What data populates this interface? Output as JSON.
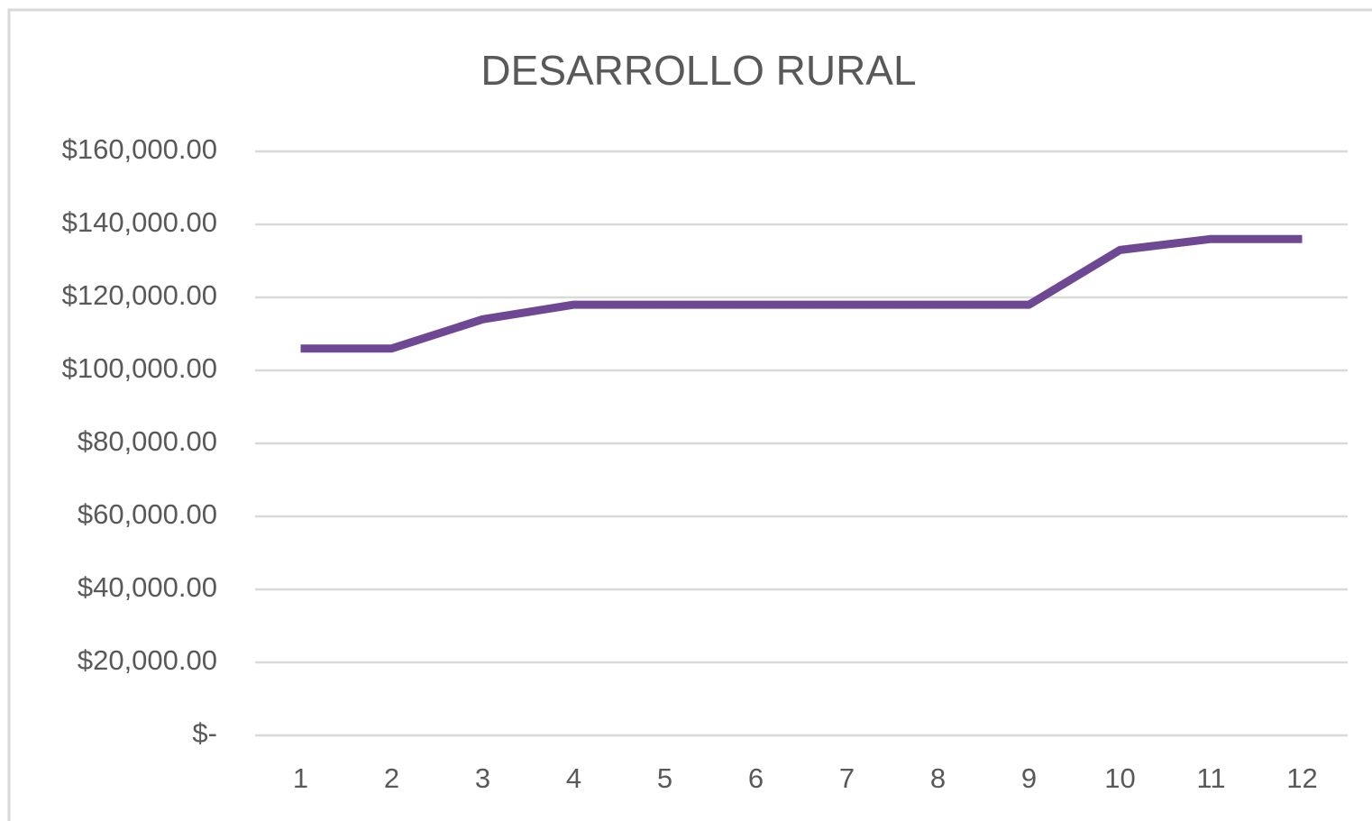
{
  "chart_data": {
    "type": "line",
    "title": "DESARROLLO RURAL",
    "categories": [
      1,
      2,
      3,
      4,
      5,
      6,
      7,
      8,
      9,
      10,
      11,
      12
    ],
    "series": [
      {
        "name": "DESARROLLO RURAL",
        "color": "#6e4893",
        "values": [
          106000,
          106000,
          114000,
          118000,
          118000,
          118000,
          118000,
          118000,
          118000,
          133000,
          136000,
          136000
        ]
      }
    ],
    "ylim": [
      0,
      160000
    ],
    "yticks": [
      {
        "value": 0,
        "label": "$-"
      },
      {
        "value": 20000,
        "label": "$20,000.00"
      },
      {
        "value": 40000,
        "label": "$40,000.00"
      },
      {
        "value": 60000,
        "label": "$60,000.00"
      },
      {
        "value": 80000,
        "label": "$80,000.00"
      },
      {
        "value": 100000,
        "label": "$100,000.00"
      },
      {
        "value": 120000,
        "label": "$120,000.00"
      },
      {
        "value": 140000,
        "label": "$140,000.00"
      },
      {
        "value": 160000,
        "label": "$160,000.00"
      }
    ],
    "grid": true,
    "legend": false
  }
}
